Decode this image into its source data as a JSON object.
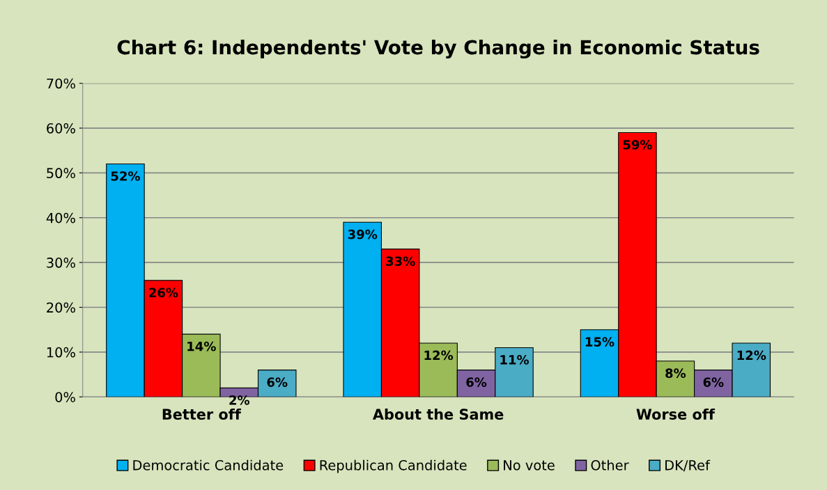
{
  "chart_data": {
    "type": "bar",
    "title": "Chart 6: Independents' Vote by Change in Economic Status",
    "categories": [
      "Better off",
      "About the Same",
      "Worse off"
    ],
    "series": [
      {
        "name": "Democratic Candidate",
        "color": "#00b0f0",
        "values": [
          52,
          39,
          15
        ],
        "value_labels": [
          "52%",
          "39%",
          "15%"
        ]
      },
      {
        "name": "Republican Candidate",
        "color": "#ff0000",
        "values": [
          26,
          33,
          59
        ],
        "value_labels": [
          "26%",
          "33%",
          "59%"
        ]
      },
      {
        "name": "No vote",
        "color": "#9bbb59",
        "values": [
          14,
          12,
          8
        ],
        "value_labels": [
          "14%",
          "12%",
          "8%"
        ]
      },
      {
        "name": "Other",
        "color": "#8064a2",
        "values": [
          2,
          6,
          6
        ],
        "value_labels": [
          "2%",
          "6%",
          "6%"
        ]
      },
      {
        "name": "DK/Ref",
        "color": "#4bacc6",
        "values": [
          6,
          11,
          12
        ],
        "value_labels": [
          "6%",
          "11%",
          "12%"
        ]
      }
    ],
    "ylim": [
      0,
      70
    ],
    "yticks": [
      {
        "value": 0,
        "label": "0%"
      },
      {
        "value": 10,
        "label": "10%"
      },
      {
        "value": 20,
        "label": "20%"
      },
      {
        "value": 30,
        "label": "30%"
      },
      {
        "value": 40,
        "label": "40%"
      },
      {
        "value": 50,
        "label": "50%"
      },
      {
        "value": 60,
        "label": "60%"
      },
      {
        "value": 70,
        "label": "70%"
      }
    ],
    "grid": "y",
    "legend": "bottom"
  }
}
